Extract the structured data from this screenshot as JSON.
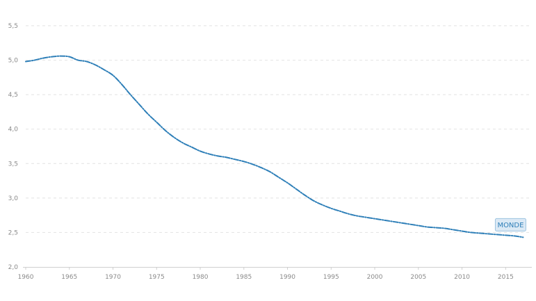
{
  "chart_data": {
    "type": "line",
    "title": "",
    "xlabel": "",
    "ylabel": "",
    "xlim": [
      1960,
      2018
    ],
    "ylim": [
      2.0,
      5.5
    ],
    "x_ticks": [
      "1960",
      "1965",
      "1970",
      "1975",
      "1980",
      "1985",
      "1990",
      "1995",
      "2000",
      "2005",
      "2010",
      "2015"
    ],
    "y_ticks": [
      "2,0",
      "2,5",
      "3,0",
      "3,5",
      "4,0",
      "4,5",
      "5,0",
      "5,5"
    ],
    "grid": true,
    "series": [
      {
        "name": "MONDE",
        "color": "#2e7fb8",
        "x": [
          1960,
          1961,
          1962,
          1963,
          1964,
          1965,
          1966,
          1967,
          1968,
          1969,
          1970,
          1971,
          1972,
          1973,
          1974,
          1975,
          1976,
          1977,
          1978,
          1979,
          1980,
          1981,
          1982,
          1983,
          1984,
          1985,
          1986,
          1987,
          1988,
          1989,
          1990,
          1991,
          1992,
          1993,
          1994,
          1995,
          1996,
          1997,
          1998,
          1999,
          2000,
          2001,
          2002,
          2003,
          2004,
          2005,
          2006,
          2007,
          2008,
          2009,
          2010,
          2011,
          2012,
          2013,
          2014,
          2015,
          2016,
          2017
        ],
        "values": [
          4.98,
          5.0,
          5.03,
          5.05,
          5.06,
          5.05,
          5.0,
          4.98,
          4.93,
          4.86,
          4.78,
          4.65,
          4.5,
          4.36,
          4.22,
          4.1,
          3.98,
          3.88,
          3.8,
          3.74,
          3.68,
          3.64,
          3.61,
          3.59,
          3.56,
          3.53,
          3.49,
          3.44,
          3.38,
          3.3,
          3.22,
          3.13,
          3.04,
          2.96,
          2.9,
          2.85,
          2.81,
          2.77,
          2.74,
          2.72,
          2.7,
          2.68,
          2.66,
          2.64,
          2.62,
          2.6,
          2.58,
          2.57,
          2.56,
          2.54,
          2.52,
          2.5,
          2.49,
          2.48,
          2.47,
          2.46,
          2.45,
          2.43
        ]
      }
    ],
    "series_label": {
      "text": "MONDE",
      "fill": "#dbe9f5",
      "border": "#9cc3e0",
      "text_color": "#2e7fb8"
    }
  }
}
